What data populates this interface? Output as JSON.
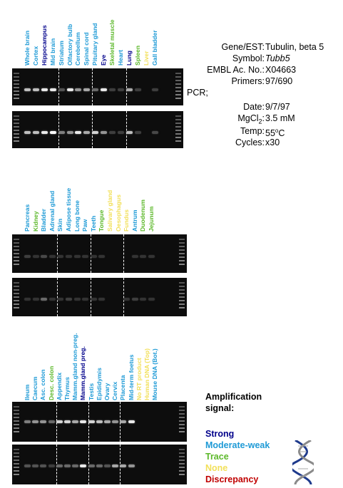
{
  "colors": {
    "strong": "#00008b",
    "moderate": "#1e9ad6",
    "trace": "#5cb82a",
    "none": "#f2e05a",
    "discrepancy": "#c00000"
  },
  "panels": [
    {
      "lanes": [
        {
          "label": "Whole brain",
          "level": "moderate",
          "bands": [
            0.7,
            0.7
          ]
        },
        {
          "label": "Cortex",
          "level": "moderate",
          "bands": [
            0.7,
            0.7
          ]
        },
        {
          "label": "Hippocampus",
          "level": "strong",
          "bands": [
            0.9,
            0.9
          ]
        },
        {
          "label": "Mid brain",
          "level": "moderate",
          "bands": [
            0.9,
            1.0
          ]
        },
        {
          "label": "Striatum",
          "level": "moderate",
          "bands": [
            0.2,
            0.4
          ]
        },
        {
          "label": "Olfactory bulb",
          "level": "moderate",
          "bands": [
            0.9,
            0.5
          ]
        },
        {
          "label": "Cerebellum",
          "level": "moderate",
          "bands": [
            0.5,
            0.9
          ]
        },
        {
          "label": "Spinal cord",
          "level": "moderate",
          "bands": [
            0.6,
            0.6
          ]
        },
        {
          "label": "Pituitary gland",
          "level": "moderate",
          "bands": [
            0.3,
            0.8
          ]
        },
        {
          "label": "Eye",
          "level": "strong",
          "bands": [
            0.9,
            0.5
          ]
        },
        {
          "label": "Skeletal muscle",
          "level": "trace",
          "bands": [
            0.1,
            0.1
          ]
        },
        {
          "label": "Heart",
          "level": "moderate",
          "bands": [
            0.1,
            0.1
          ]
        },
        {
          "label": "Lung",
          "level": "strong",
          "bands": [
            0.6,
            0.7
          ]
        },
        {
          "label": "Spleen",
          "level": "trace",
          "bands": [
            0.1,
            0.1
          ]
        },
        {
          "label": "Liver",
          "level": "none",
          "bands": [
            0.0,
            0.0
          ]
        },
        {
          "label": "Gall bladder",
          "level": "moderate",
          "bands": [
            0.1,
            0.15
          ]
        }
      ]
    },
    {
      "lanes": [
        {
          "label": "Pancreas",
          "level": "moderate",
          "bands": [
            0.1,
            0.05
          ]
        },
        {
          "label": "Kidney",
          "level": "trace",
          "bands": [
            0.05,
            0.05
          ]
        },
        {
          "label": "Bladder",
          "level": "moderate",
          "bands": [
            0.15,
            0.3
          ]
        },
        {
          "label": "Adrenal gland",
          "level": "moderate",
          "bands": [
            0.05,
            0.05
          ]
        },
        {
          "label": "Skin",
          "level": "moderate",
          "bands": [
            0.05,
            0.05
          ]
        },
        {
          "label": "Adipose tissue",
          "level": "moderate",
          "bands": [
            0.05,
            0.1
          ]
        },
        {
          "label": "Long bone",
          "level": "moderate",
          "bands": [
            0.05,
            0.05
          ]
        },
        {
          "label": "Paw",
          "level": "moderate",
          "bands": [
            0.05,
            0.05
          ]
        },
        {
          "label": "Teeth",
          "level": "moderate",
          "bands": [
            0.05,
            0.05
          ]
        },
        {
          "label": "Tongue",
          "level": "trace",
          "bands": [
            0.05,
            0.05
          ]
        },
        {
          "label": "Salivary gland",
          "level": "none",
          "bands": [
            0.0,
            0.0
          ]
        },
        {
          "label": "Oesophagus",
          "level": "none",
          "bands": [
            0.0,
            0.0
          ]
        },
        {
          "label": "Fundus",
          "level": "none",
          "bands": [
            0.0,
            0.05
          ]
        },
        {
          "label": "Antrum",
          "level": "moderate",
          "bands": [
            0.05,
            0.1
          ]
        },
        {
          "label": "Duodenum",
          "level": "trace",
          "bands": [
            0.05,
            0.05
          ]
        },
        {
          "label": "Jejunum",
          "level": "trace",
          "bands": [
            0.05,
            0.05
          ]
        }
      ]
    },
    {
      "lanes": [
        {
          "label": "Ileum",
          "level": "moderate",
          "bands": [
            0.4,
            0.2
          ]
        },
        {
          "label": "Caecum",
          "level": "moderate",
          "bands": [
            0.5,
            0.2
          ]
        },
        {
          "label": "Asc. colon",
          "level": "moderate",
          "bands": [
            0.5,
            0.2
          ]
        },
        {
          "label": "Desc. colon",
          "level": "trace",
          "bands": [
            0.3,
            0.1
          ]
        },
        {
          "label": "Appendix",
          "level": "moderate",
          "bands": [
            0.8,
            0.3
          ]
        },
        {
          "label": "Thymus",
          "level": "moderate",
          "bands": [
            0.8,
            0.3
          ]
        },
        {
          "label": "Mamm.gland non-preg.",
          "level": "moderate",
          "bands": [
            0.6,
            0.3
          ]
        },
        {
          "label": "Mamm.gland preg.",
          "level": "strong",
          "bands": [
            0.9,
            0.9
          ]
        },
        {
          "label": "Testis",
          "level": "moderate",
          "bands": [
            0.8,
            0.3
          ]
        },
        {
          "label": "Epididymis",
          "level": "moderate",
          "bands": [
            0.7,
            0.3
          ]
        },
        {
          "label": "Ovary",
          "level": "moderate",
          "bands": [
            0.6,
            0.2
          ]
        },
        {
          "label": "Cervix",
          "level": "moderate",
          "bands": [
            0.5,
            0.6
          ]
        },
        {
          "label": "Placenta",
          "level": "moderate",
          "bands": [
            0.6,
            0.6
          ]
        },
        {
          "label": "Mid-term foetus",
          "level": "moderate",
          "bands": [
            0.9,
            0.5
          ]
        },
        {
          "label": "No RT product",
          "level": "none",
          "bands": [
            0.0,
            0.0
          ]
        },
        {
          "label": "Human DNA (Top)",
          "level": "none",
          "bands": [
            0.0,
            0.0
          ]
        },
        {
          "label": "Mouse DNA (Bot.)",
          "level": "moderate",
          "bands": [
            0.0,
            0.0
          ]
        }
      ]
    }
  ],
  "info": {
    "gene_label": "Gene/EST:",
    "gene_value": "Tubulin, beta 5",
    "symbol_label": "Symbol:",
    "symbol_value": "Tubb5",
    "embl_label": "EMBL Ac. No.:",
    "embl_value": "X04663",
    "primers_label": "Primers:",
    "primers_value": "97/690",
    "pcr_label": "PCR;",
    "date_label": "Date:",
    "date_value": "9/7/97",
    "mgcl_label_main": "MgCl",
    "mgcl_label_sub": "2",
    "mgcl_label_colon": ":",
    "mgcl_value": "3.5 mM",
    "temp_label": "Temp:",
    "temp_value_num": "55",
    "temp_value_sup": "o",
    "temp_value_unit": "C",
    "cycles_label": "Cycles:",
    "cycles_value": "x30"
  },
  "legend": {
    "title_line1": "Amplification",
    "title_line2": "signal:",
    "strong": "Strong",
    "moderate": "Moderate-weak",
    "trace": "Trace",
    "none": "None",
    "discrepancy": "Discrepancy"
  }
}
